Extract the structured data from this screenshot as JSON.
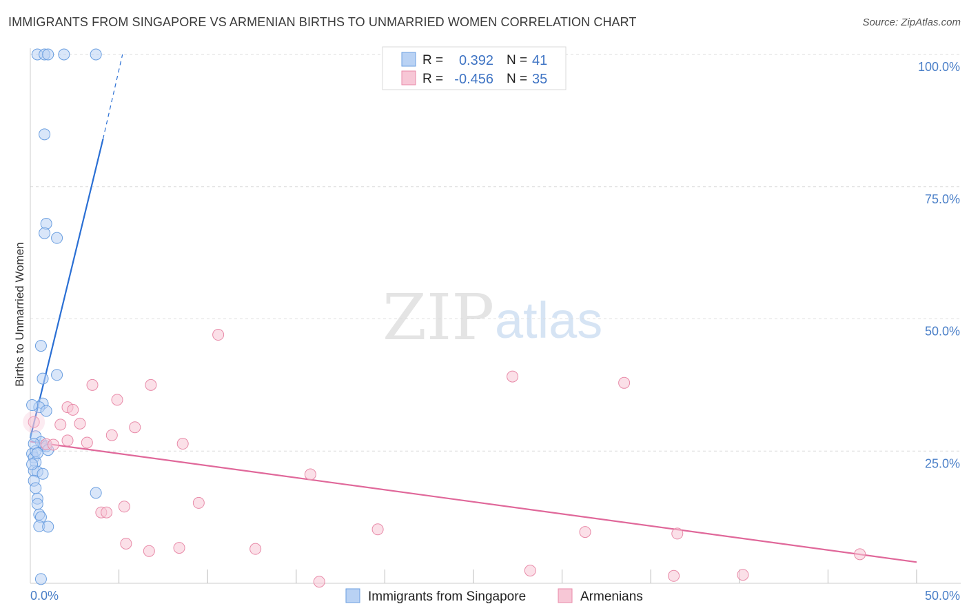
{
  "title": "IMMIGRANTS FROM SINGAPORE VS ARMENIAN BIRTHS TO UNMARRIED WOMEN CORRELATION CHART",
  "source": "Source: ZipAtlas.com",
  "watermark": {
    "zip": "ZIP",
    "atlas": "atlas"
  },
  "colors": {
    "blue": "#6b9fe0",
    "blue_fill": "#b9d2f4",
    "blue_line": "#2a6fd4",
    "pink": "#e88aa8",
    "pink_fill": "#f7c7d6",
    "pink_line": "#e0689a",
    "tick": "#4a7fc8",
    "grid": "#dcdcdc"
  },
  "legend": {
    "rows": [
      {
        "r_label": "R =",
        "r_value": "0.392",
        "n_label": "N =",
        "n_value": "41"
      },
      {
        "r_label": "R =",
        "r_value": "-0.456",
        "n_label": "N =",
        "n_value": "35"
      }
    ]
  },
  "bottom_legend": [
    "Immigrants from Singapore",
    "Armenians"
  ],
  "chart_data": {
    "type": "scatter",
    "title": "IMMIGRANTS FROM SINGAPORE VS ARMENIAN BIRTHS TO UNMARRIED WOMEN CORRELATION CHART",
    "xlabel": "",
    "ylabel": "Births to Unmarried Women",
    "xlim": [
      0,
      50
    ],
    "ylim": [
      0,
      100
    ],
    "x_tick_labels": [
      "0.0%",
      "50.0%"
    ],
    "y_tick_labels": [
      "100.0%",
      "75.0%",
      "50.0%",
      "25.0%"
    ],
    "y_ticks": [
      100,
      75,
      50,
      25
    ],
    "series": [
      {
        "name": "Immigrants from Singapore",
        "r": 0.392,
        "n": 41,
        "points": [
          [
            0.4,
            100.0
          ],
          [
            0.8,
            100.0
          ],
          [
            1.0,
            100.0
          ],
          [
            1.9,
            100.0
          ],
          [
            3.7,
            100.0
          ],
          [
            0.8,
            84.9
          ],
          [
            0.9,
            68.0
          ],
          [
            0.8,
            66.2
          ],
          [
            1.5,
            65.3
          ],
          [
            0.6,
            44.9
          ],
          [
            0.7,
            38.7
          ],
          [
            1.5,
            39.4
          ],
          [
            0.7,
            34.0
          ],
          [
            0.5,
            33.3
          ],
          [
            0.9,
            32.6
          ],
          [
            0.1,
            33.7
          ],
          [
            0.3,
            27.8
          ],
          [
            0.7,
            26.0
          ],
          [
            0.6,
            26.7
          ],
          [
            0.9,
            25.9
          ],
          [
            1.0,
            25.2
          ],
          [
            0.1,
            24.5
          ],
          [
            0.2,
            23.8
          ],
          [
            0.3,
            22.9
          ],
          [
            0.2,
            21.3
          ],
          [
            0.4,
            21.1
          ],
          [
            0.7,
            20.7
          ],
          [
            0.2,
            19.4
          ],
          [
            0.3,
            18.0
          ],
          [
            3.7,
            17.1
          ],
          [
            0.4,
            16.0
          ],
          [
            0.4,
            15.0
          ],
          [
            0.5,
            13.0
          ],
          [
            0.6,
            12.5
          ],
          [
            0.5,
            10.8
          ],
          [
            1.0,
            10.7
          ],
          [
            0.6,
            0.8
          ],
          [
            0.1,
            22.5
          ],
          [
            0.3,
            25.0
          ],
          [
            0.2,
            26.4
          ],
          [
            0.4,
            24.6
          ]
        ],
        "trend": {
          "x": [
            0.0,
            4.1
          ],
          "y": [
            27.5,
            84.0
          ]
        },
        "trend_dashed": {
          "x": [
            4.1,
            5.2
          ],
          "y": [
            84.0,
            100.0
          ]
        }
      },
      {
        "name": "Armenians",
        "r": -0.456,
        "n": 35,
        "points": [
          [
            0.2,
            30.5
          ],
          [
            0.9,
            26.3
          ],
          [
            1.3,
            26.2
          ],
          [
            1.7,
            30.0
          ],
          [
            2.1,
            27.0
          ],
          [
            2.1,
            33.3
          ],
          [
            2.4,
            32.8
          ],
          [
            2.8,
            30.2
          ],
          [
            3.2,
            26.6
          ],
          [
            3.5,
            37.5
          ],
          [
            4.6,
            28.0
          ],
          [
            4.9,
            34.7
          ],
          [
            5.9,
            29.5
          ],
          [
            6.8,
            37.5
          ],
          [
            8.6,
            26.4
          ],
          [
            10.6,
            47.0
          ],
          [
            15.8,
            20.6
          ],
          [
            27.2,
            39.1
          ],
          [
            33.5,
            37.9
          ],
          [
            4.0,
            13.4
          ],
          [
            4.3,
            13.4
          ],
          [
            5.3,
            14.5
          ],
          [
            9.5,
            15.2
          ],
          [
            5.4,
            7.5
          ],
          [
            6.7,
            6.1
          ],
          [
            8.4,
            6.7
          ],
          [
            12.7,
            6.5
          ],
          [
            19.6,
            10.2
          ],
          [
            31.3,
            9.7
          ],
          [
            36.5,
            9.4
          ],
          [
            28.2,
            2.4
          ],
          [
            36.3,
            1.4
          ],
          [
            40.2,
            1.6
          ],
          [
            46.8,
            5.5
          ],
          [
            16.3,
            0.3
          ]
        ],
        "trend": {
          "x": [
            0.0,
            50.0
          ],
          "y": [
            26.8,
            4.0
          ]
        }
      }
    ]
  }
}
